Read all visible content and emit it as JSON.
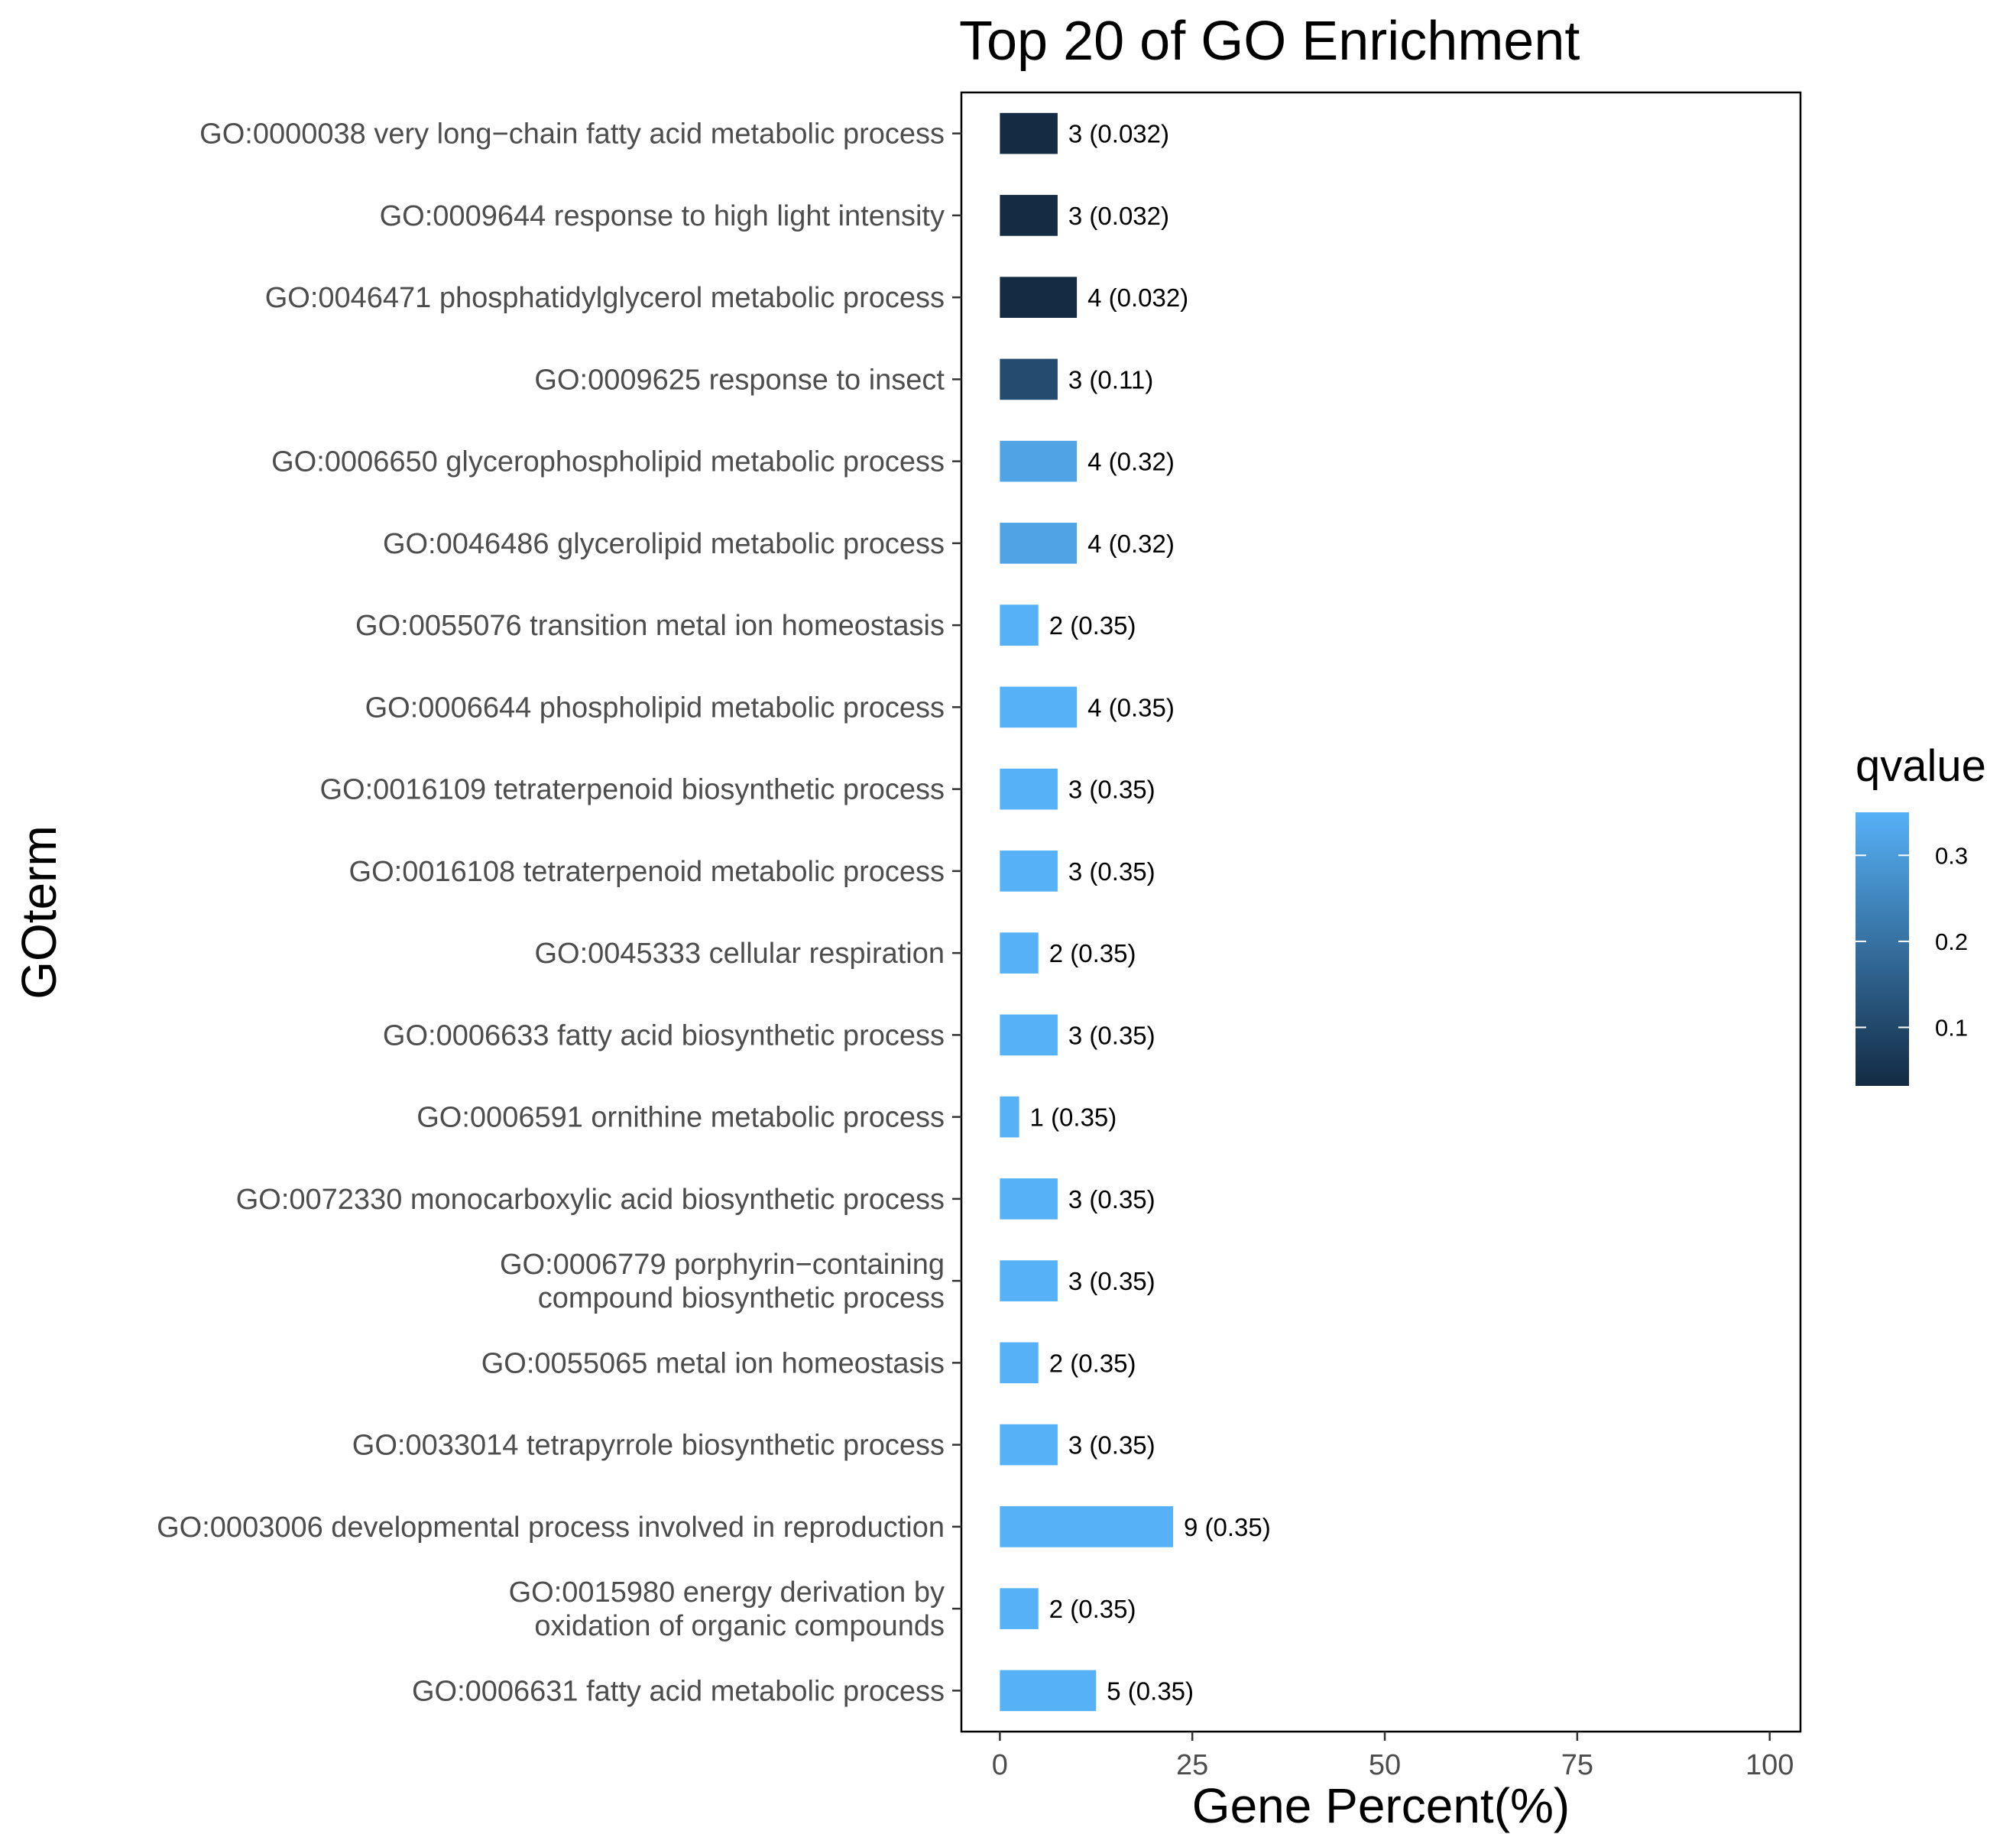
{
  "chart_data": {
    "type": "bar",
    "orientation": "horizontal",
    "title": "Top 20 of GO Enrichment",
    "xlabel": "Gene Percent(%)",
    "ylabel": "GOterm",
    "xlim": [
      -5,
      104
    ],
    "x_ticks": [
      0,
      25,
      50,
      75,
      100
    ],
    "grid": false,
    "legend": {
      "title": "qvalue",
      "placement": "right",
      "type": "colorbar",
      "range": [
        0.032,
        0.35
      ],
      "ticks": [
        0.1,
        0.2,
        0.3
      ],
      "low_color": "#132B43",
      "high_color": "#56B1F7"
    },
    "categories": [
      [
        "GO:0000038 very long−chain fatty acid metabolic process"
      ],
      [
        "GO:0009644 response to high light intensity"
      ],
      [
        "GO:0046471 phosphatidylglycerol metabolic process"
      ],
      [
        "GO:0009625 response to insect"
      ],
      [
        "GO:0006650 glycerophospholipid metabolic process"
      ],
      [
        "GO:0046486 glycerolipid metabolic process"
      ],
      [
        "GO:0055076 transition metal ion homeostasis"
      ],
      [
        "GO:0006644 phospholipid metabolic process"
      ],
      [
        "GO:0016109 tetraterpenoid biosynthetic process"
      ],
      [
        "GO:0016108 tetraterpenoid metabolic process"
      ],
      [
        "GO:0045333 cellular respiration"
      ],
      [
        "GO:0006633 fatty acid biosynthetic process"
      ],
      [
        "GO:0006591 ornithine metabolic process"
      ],
      [
        "GO:0072330 monocarboxylic acid biosynthetic process"
      ],
      [
        "GO:0006779 porphyrin−containing",
        "compound biosynthetic process"
      ],
      [
        "GO:0055065 metal ion homeostasis"
      ],
      [
        "GO:0033014 tetrapyrrole biosynthetic process"
      ],
      [
        "GO:0003006 developmental process involved in reproduction"
      ],
      [
        "GO:0015980 energy derivation by",
        "oxidation of organic compounds"
      ],
      [
        "GO:0006631 fatty acid metabolic process"
      ]
    ],
    "values": [
      7.5,
      7.5,
      10,
      7.5,
      10,
      10,
      5,
      10,
      7.5,
      7.5,
      5,
      7.5,
      2.5,
      7.5,
      7.5,
      5,
      7.5,
      22.5,
      5,
      12.5
    ],
    "gene_counts": [
      3,
      3,
      4,
      3,
      4,
      4,
      2,
      4,
      3,
      3,
      2,
      3,
      1,
      3,
      3,
      2,
      3,
      9,
      2,
      5
    ],
    "qvalues": [
      0.032,
      0.032,
      0.032,
      0.11,
      0.32,
      0.32,
      0.35,
      0.35,
      0.35,
      0.35,
      0.35,
      0.35,
      0.35,
      0.35,
      0.35,
      0.35,
      0.35,
      0.35,
      0.35,
      0.35
    ],
    "data_labels": [
      "3 (0.032)",
      "3 (0.032)",
      "4 (0.032)",
      "3 (0.11)",
      "4 (0.32)",
      "4 (0.32)",
      "2 (0.35)",
      "4 (0.35)",
      "3 (0.35)",
      "3 (0.35)",
      "2 (0.35)",
      "3 (0.35)",
      "1 (0.35)",
      "3 (0.35)",
      "3 (0.35)",
      "2 (0.35)",
      "3 (0.35)",
      "9 (0.35)",
      "2 (0.35)",
      "5 (0.35)"
    ]
  }
}
